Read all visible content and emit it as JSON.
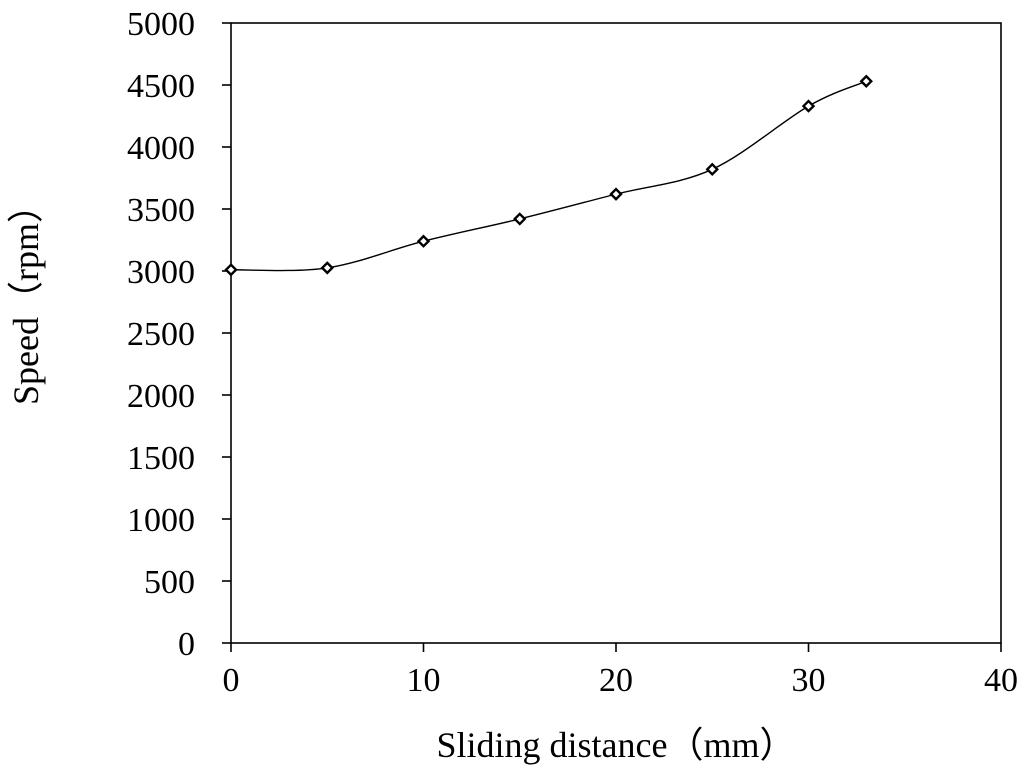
{
  "chart_data": {
    "type": "line",
    "xlabel": "Sliding distance（mm）",
    "ylabel": "Speed（rpm）",
    "xlim": [
      0,
      40
    ],
    "ylim": [
      0,
      5000
    ],
    "x_ticks": [
      0,
      10,
      20,
      30,
      40
    ],
    "y_ticks": [
      0,
      500,
      1000,
      1500,
      2000,
      2500,
      3000,
      3500,
      4000,
      4500,
      5000
    ],
    "grid": false,
    "legend": "none",
    "line_style": "smooth",
    "marker": "diamond-open",
    "colors": {
      "line": "#000000",
      "marker_fill": "#ffffff"
    },
    "series": [
      {
        "x": [
          0,
          5,
          10,
          15,
          20,
          25,
          30,
          33
        ],
        "y": [
          3010,
          3025,
          3240,
          3420,
          3620,
          3820,
          4330,
          4530
        ]
      }
    ]
  }
}
